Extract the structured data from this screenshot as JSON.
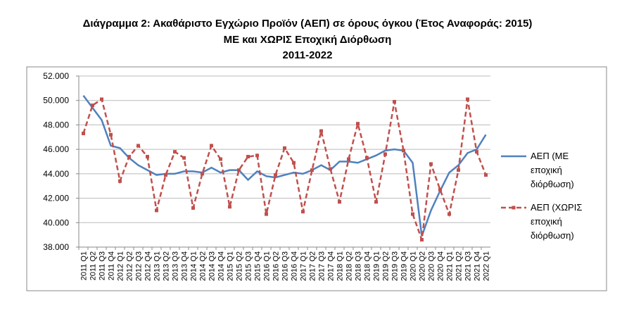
{
  "chart_data": {
    "type": "line",
    "title": [
      "Διάγραμμα 2: Ακαθάριστο Εγχώριο Προϊόν (ΑΕΠ) σε όρους όγκου (Έτος Αναφοράς: 2015)",
      "ΜΕ και ΧΩΡΙΣ Εποχική Διόρθωση",
      "2011-2022"
    ],
    "categories": [
      "2011 Q1",
      "2011 Q2",
      "2011 Q3",
      "2011 Q4",
      "2012 Q1",
      "2012 Q2",
      "2012 Q3",
      "2012 Q4",
      "2013 Q1",
      "2013 Q2",
      "2013 Q3",
      "2013 Q4",
      "2014 Q1",
      "2014 Q2",
      "2014 Q3",
      "2014 Q4",
      "2015 Q1",
      "2015 Q2",
      "2015 Q3",
      "2015 Q4",
      "2016 Q1",
      "2016 Q2",
      "2016 Q3",
      "2016 Q4",
      "2017 Q1",
      "2017 Q2",
      "2017 Q3",
      "2017 Q4",
      "2018 Q1",
      "2018 Q2",
      "2018 Q3",
      "2018 Q4",
      "2019 Q1",
      "2019 Q2",
      "2019 Q3",
      "2019 Q4",
      "2020 Q1",
      "2020 Q2",
      "2020 Q3",
      "2020 Q4",
      "2021 Q1",
      "2021 Q2",
      "2021 Q3",
      "2021 Q4",
      "2022 Q1"
    ],
    "series": [
      {
        "name": "ΑΕΠ (ΜΕ εποχική διόρθωση)",
        "color": "#4f81bd",
        "dashed": false,
        "marker": "none",
        "values": [
          50400,
          49400,
          48400,
          46300,
          46100,
          45300,
          44700,
          44300,
          43900,
          44000,
          44000,
          44200,
          44200,
          44100,
          44500,
          44100,
          44300,
          44300,
          43500,
          44200,
          43800,
          43700,
          43900,
          44100,
          44000,
          44300,
          44700,
          44300,
          45000,
          45000,
          44900,
          45200,
          45500,
          45900,
          46000,
          45900,
          44900,
          38900,
          41000,
          42600,
          44100,
          44700,
          45700,
          46000,
          47200
        ]
      },
      {
        "name": "ΑΕΠ (ΧΩΡΙΣ εποχική διόρθωση)",
        "color": "#c0504d",
        "dashed": true,
        "marker": "square",
        "values": [
          47300,
          49600,
          50100,
          47200,
          43400,
          45400,
          46300,
          45400,
          41000,
          43900,
          45800,
          45300,
          41200,
          44000,
          46300,
          45200,
          41300,
          44300,
          45400,
          45500,
          40700,
          43900,
          46100,
          44900,
          40900,
          44300,
          47500,
          44400,
          41700,
          45200,
          48100,
          45300,
          41700,
          45600,
          49900,
          45900,
          40700,
          38600,
          44800,
          42700,
          40700,
          44300,
          50100,
          45800,
          43900
        ]
      }
    ],
    "ylim": [
      38000,
      52000
    ],
    "yticks": [
      {
        "value": 38000,
        "label": "38.000"
      },
      {
        "value": 40000,
        "label": "40.000"
      },
      {
        "value": 42000,
        "label": "42.000"
      },
      {
        "value": 44000,
        "label": "44.000"
      },
      {
        "value": 46000,
        "label": "46.000"
      },
      {
        "value": 48000,
        "label": "48.000"
      },
      {
        "value": 50000,
        "label": "50.000"
      },
      {
        "value": 52000,
        "label": "52.000"
      }
    ],
    "grid": true
  }
}
